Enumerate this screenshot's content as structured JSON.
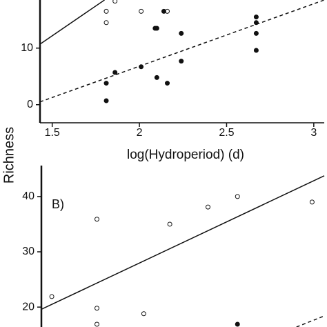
{
  "chart_data": [
    {
      "type": "scatter",
      "xlabel": "log(Hydroperiod) (d)",
      "ylabel": "Richness",
      "xlim": [
        1.43,
        3.06
      ],
      "ylim": [
        -3.2,
        18.5
      ],
      "xticks": [
        1.5,
        2.0,
        2.5,
        3.0
      ],
      "yticks": [
        0,
        10
      ],
      "series": [
        {
          "marker": "open",
          "x": [
            1.81,
            1.81,
            1.86,
            2.01,
            2.16
          ],
          "values": [
            16.5,
            14.5,
            18.3,
            16.5,
            16.5
          ]
        },
        {
          "marker": "filled",
          "x": [
            2.14,
            2.09,
            2.1,
            2.24,
            2.67,
            2.67,
            2.67,
            2.67,
            1.86,
            2.01,
            2.1,
            2.16,
            2.24,
            1.81,
            1.81
          ],
          "values": [
            16.5,
            13.5,
            13.5,
            12.6,
            15.5,
            14.5,
            12.6,
            9.6,
            5.7,
            6.7,
            4.8,
            3.8,
            7.7,
            3.8,
            0.7
          ]
        }
      ],
      "lines": [
        {
          "style": "solid",
          "x": [
            1.43,
            1.8
          ],
          "values": [
            10.7,
            18.5
          ]
        },
        {
          "style": "dashed",
          "x": [
            1.43,
            3.06
          ],
          "values": [
            0.5,
            18.5
          ]
        }
      ]
    },
    {
      "type": "scatter",
      "annotation": "B)",
      "xlim": [
        1.43,
        3.06
      ],
      "ylim": [
        16.4,
        45.6
      ],
      "yticks": [
        20,
        30,
        40
      ],
      "series": [
        {
          "marker": "open",
          "x": [
            1.49,
            1.75,
            1.75,
            2.17,
            2.39,
            2.56,
            2.99,
            2.02,
            1.75
          ],
          "values": [
            21.9,
            35.9,
            19.8,
            35,
            38.1,
            40,
            39,
            18.8,
            16.9
          ]
        },
        {
          "marker": "filled",
          "x": [
            2.56
          ],
          "values": [
            16.9
          ]
        }
      ],
      "lines": [
        {
          "style": "solid",
          "x": [
            1.43,
            3.06
          ],
          "values": [
            19.6,
            43.75
          ]
        },
        {
          "style": "dashed",
          "x": [
            2.9,
            3.06
          ],
          "values": [
            16.4,
            18.4
          ]
        }
      ]
    }
  ]
}
